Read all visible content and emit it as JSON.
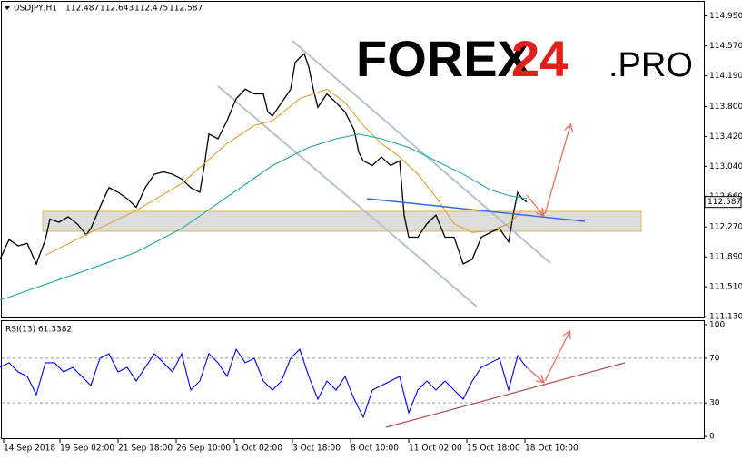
{
  "logo": {
    "main": "FOREX",
    "number": "24",
    "suffix": ".PRO"
  },
  "chart_data": [
    {
      "type": "line",
      "title": "USDJPY,H1",
      "ohlc": [
        112.487,
        112.643,
        112.475,
        112.587
      ],
      "last_price": 112.587,
      "ylim": [
        111.12,
        115.13
      ],
      "yticks": [
        {
          "value": 114.95,
          "label": "114.950"
        },
        {
          "value": 114.57,
          "label": "114.570"
        },
        {
          "value": 114.19,
          "label": "114.190"
        },
        {
          "value": 113.8,
          "label": "113.800"
        },
        {
          "value": 113.42,
          "label": "113.420"
        },
        {
          "value": 113.04,
          "label": "113.040"
        },
        {
          "value": 112.66,
          "label": "112.660"
        },
        {
          "value": 112.27,
          "label": "112.270"
        },
        {
          "value": 111.89,
          "label": "111.890"
        },
        {
          "value": 111.51,
          "label": "111.510"
        },
        {
          "value": 111.13,
          "label": "111.130"
        }
      ],
      "xlim": [
        0,
        772
      ],
      "series": [
        {
          "color": "#000000",
          "x": [
            0,
            10,
            20,
            30,
            40,
            50,
            55,
            65,
            75,
            85,
            95,
            100,
            110,
            120,
            130,
            140,
            150,
            160,
            170,
            180,
            190,
            200,
            210,
            220,
            225,
            230,
            240,
            250,
            260,
            270,
            280,
            290,
            295,
            300,
            310,
            320,
            325,
            330,
            335,
            340,
            345,
            350,
            360,
            370,
            380,
            390,
            395,
            400,
            410,
            420,
            430,
            440,
            445,
            450,
            460,
            470,
            480,
            490,
            500,
            510,
            520,
            530,
            540,
            550,
            560,
            565,
            570,
            575,
            580
          ],
          "values": [
            111.86,
            112.11,
            112.03,
            112.06,
            111.8,
            112.11,
            112.37,
            112.33,
            112.4,
            112.31,
            112.17,
            112.25,
            112.52,
            112.77,
            112.71,
            112.63,
            112.52,
            112.77,
            112.94,
            112.97,
            112.94,
            112.88,
            112.77,
            112.71,
            113.05,
            113.45,
            113.39,
            113.62,
            113.9,
            114.02,
            113.96,
            113.96,
            113.73,
            113.68,
            113.85,
            114.02,
            114.36,
            114.42,
            114.47,
            114.3,
            114.02,
            113.79,
            113.96,
            113.85,
            113.73,
            113.5,
            113.22,
            113.11,
            113.05,
            113.16,
            113.05,
            113.11,
            112.42,
            112.14,
            112.14,
            112.31,
            112.42,
            112.14,
            112.14,
            111.8,
            111.86,
            112.14,
            112.2,
            112.25,
            112.08,
            112.42,
            112.71,
            112.63,
            112.587
          ]
        },
        {
          "color": "#e0a030",
          "x": [
            50,
            100,
            150,
            200,
            250,
            280,
            300,
            330,
            360,
            380,
            400,
            420,
            440,
            460,
            480,
            500,
            520,
            540,
            560,
            575
          ],
          "values": [
            111.91,
            112.2,
            112.48,
            112.82,
            113.33,
            113.56,
            113.62,
            113.9,
            114.02,
            113.85,
            113.56,
            113.33,
            113.16,
            112.94,
            112.65,
            112.31,
            112.2,
            112.22,
            112.31,
            112.48
          ]
        },
        {
          "color": "#20a8a8",
          "x": [
            0,
            50,
            100,
            150,
            200,
            250,
            300,
            340,
            370,
            395,
            420,
            450,
            480,
            510,
            540,
            560,
            580
          ],
          "values": [
            111.34,
            111.54,
            111.74,
            111.95,
            112.25,
            112.65,
            113.05,
            113.28,
            113.39,
            113.45,
            113.39,
            113.28,
            113.11,
            112.94,
            112.74,
            112.67,
            112.63
          ]
        }
      ]
    },
    {
      "type": "line",
      "title": "RSI(13) 61.3382",
      "ylim": [
        0,
        100
      ],
      "yticks": [
        100,
        70,
        30,
        0
      ],
      "levels": [
        70,
        30
      ],
      "xlim": [
        0,
        772
      ],
      "xticks": [
        {
          "value": 4,
          "label": "14 Sep 2018"
        },
        {
          "value": 66,
          "label": "19 Sep 02:00"
        },
        {
          "value": 130,
          "label": "21 Sep 18:00"
        },
        {
          "value": 194,
          "label": "26 Sep 10:00"
        },
        {
          "value": 258,
          "label": "1 Oct 02:00"
        },
        {
          "value": 322,
          "label": "3 Oct 18:00"
        },
        {
          "value": 386,
          "label": "8 Oct 10:00"
        },
        {
          "value": 450,
          "label": "11 Oct 02:00"
        },
        {
          "value": 514,
          "label": "15 Oct 18:00"
        },
        {
          "value": 578,
          "label": "18 Oct 10:00"
        }
      ],
      "series": [
        {
          "color": "#0000ff",
          "x": [
            0,
            10,
            20,
            30,
            40,
            50,
            60,
            70,
            80,
            90,
            100,
            110,
            120,
            130,
            140,
            150,
            160,
            170,
            180,
            190,
            200,
            210,
            220,
            230,
            240,
            250,
            260,
            270,
            280,
            290,
            300,
            310,
            320,
            330,
            340,
            350,
            360,
            370,
            380,
            390,
            400,
            410,
            420,
            430,
            440,
            450,
            460,
            470,
            480,
            490,
            500,
            510,
            520,
            530,
            540,
            550,
            560,
            570,
            580
          ],
          "values": [
            61.8,
            65.9,
            57.7,
            53.7,
            37.4,
            65.9,
            65.9,
            57.7,
            61.8,
            53.7,
            45.5,
            69.9,
            74.0,
            57.7,
            61.8,
            49.6,
            61.8,
            74.0,
            65.9,
            57.7,
            74.0,
            41.5,
            49.6,
            74.0,
            65.9,
            53.7,
            78.0,
            65.9,
            69.9,
            49.6,
            41.5,
            49.6,
            69.9,
            78.0,
            53.7,
            33.3,
            49.6,
            41.5,
            53.7,
            33.3,
            17.1,
            41.5,
            45.5,
            49.6,
            53.7,
            21.1,
            41.5,
            49.6,
            41.5,
            49.6,
            41.5,
            33.3,
            49.6,
            61.8,
            65.9,
            69.9,
            41.5,
            72.4,
            61.34
          ]
        }
      ]
    }
  ]
}
